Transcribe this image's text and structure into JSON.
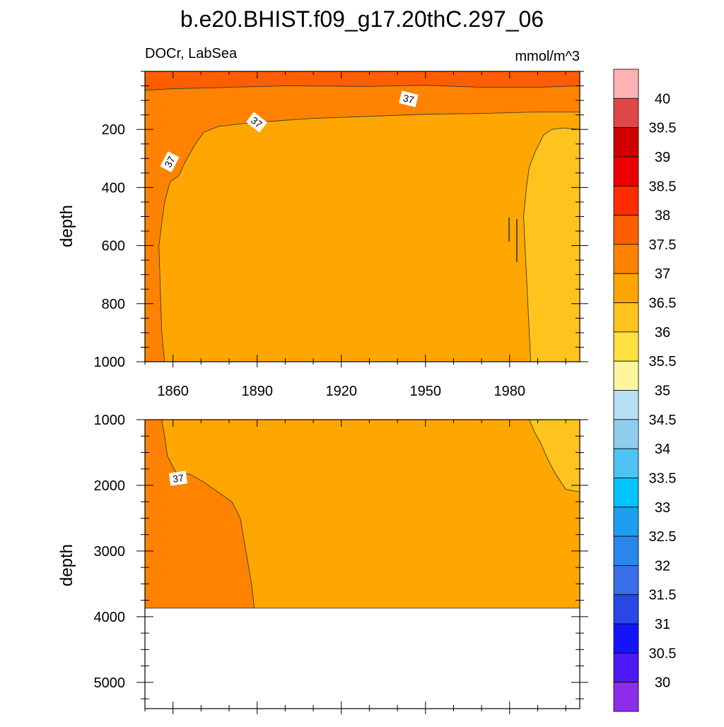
{
  "title": "b.e20.BHIST.f09_g17.20thC.297_06",
  "left_string": "DOCr, LabSea",
  "right_string": "mmol/m^3",
  "colorbar": {
    "colors": [
      "#8b2de8",
      "#4d19f5",
      "#1414fa",
      "#2a46e6",
      "#3a6ee8",
      "#2a86ea",
      "#1e9ef0",
      "#00c4fa",
      "#4ec2f2",
      "#90ccec",
      "#b8def2",
      "#fff59c",
      "#ffe040",
      "#ffc31e",
      "#ffa700",
      "#ff8300",
      "#ff5e00",
      "#ff2c00",
      "#ee0000",
      "#d00000",
      "#e04848",
      "#ffb3b3"
    ],
    "labels": [
      "30",
      "30.5",
      "31",
      "31.5",
      "32",
      "32.5",
      "33",
      "33.5",
      "34",
      "34.5",
      "35",
      "35.5",
      "36",
      "36.5",
      "37",
      "37.5",
      "38",
      "38.5",
      "39",
      "39.5",
      "40"
    ]
  },
  "chart_data": [
    {
      "type": "heatmap",
      "panel": "upper",
      "variable": "DOCr",
      "region": "LabSea",
      "units": "mmol/m^3",
      "ylabel": "depth",
      "xlim": [
        1850,
        2005
      ],
      "ylim": [
        1000,
        0
      ],
      "x_ticks": [
        1860,
        1890,
        1920,
        1950,
        1980
      ],
      "y_ticks": [
        200,
        400,
        600,
        800,
        1000
      ],
      "contour_labels": [
        "37",
        "37",
        "37"
      ],
      "regions": [
        {
          "range": "37.5-38",
          "color": "#ff5e00",
          "polygon": [
            [
              1850,
              0
            ],
            [
              2005,
              0
            ],
            [
              2005,
              50
            ],
            [
              1990,
              55
            ],
            [
              1970,
              55
            ],
            [
              1950,
              48
            ],
            [
              1930,
              52
            ],
            [
              1900,
              50
            ],
            [
              1880,
              55
            ],
            [
              1860,
              60
            ],
            [
              1850,
              65
            ]
          ]
        },
        {
          "range": "37-37.5",
          "color": "#ff8300",
          "polygon": [
            [
              1850,
              65
            ],
            [
              1860,
              60
            ],
            [
              1880,
              55
            ],
            [
              1900,
              50
            ],
            [
              1930,
              52
            ],
            [
              1950,
              48
            ],
            [
              1970,
              55
            ],
            [
              1990,
              55
            ],
            [
              2005,
              50
            ],
            [
              2005,
              140
            ],
            [
              1990,
              140
            ],
            [
              1970,
              145
            ],
            [
              1950,
              148
            ],
            [
              1930,
              155
            ],
            [
              1910,
              162
            ],
            [
              1895,
              172
            ],
            [
              1885,
              180
            ],
            [
              1876,
              190
            ],
            [
              1871,
              210
            ],
            [
              1868,
              250
            ],
            [
              1865,
              300
            ],
            [
              1862,
              360
            ],
            [
              1859,
              380
            ],
            [
              1857,
              450
            ],
            [
              1855,
              600
            ],
            [
              1856,
              900
            ],
            [
              1857,
              1000
            ],
            [
              1850,
              1000
            ]
          ]
        },
        {
          "range": "36.5-37",
          "color": "#ffa700",
          "polygon": [
            [
              1857,
              1000
            ],
            [
              1856,
              900
            ],
            [
              1855,
              600
            ],
            [
              1857,
              450
            ],
            [
              1859,
              380
            ],
            [
              1862,
              360
            ],
            [
              1865,
              300
            ],
            [
              1868,
              250
            ],
            [
              1871,
              210
            ],
            [
              1876,
              190
            ],
            [
              1885,
              180
            ],
            [
              1895,
              172
            ],
            [
              1910,
              162
            ],
            [
              1930,
              155
            ],
            [
              1950,
              148
            ],
            [
              1970,
              145
            ],
            [
              1990,
              140
            ],
            [
              2005,
              140
            ],
            [
              2005,
              200
            ],
            [
              1999,
              195
            ],
            [
              1995,
              200
            ],
            [
              1992,
              220
            ],
            [
              1989,
              280
            ],
            [
              1987,
              330
            ],
            [
              1986,
              400
            ],
            [
              1985,
              500
            ],
            [
              1986,
              700
            ],
            [
              1987,
              900
            ],
            [
              1987.5,
              1000
            ]
          ]
        },
        {
          "range": "36-36.5",
          "color": "#ffc31e",
          "polygon": [
            [
              1987.5,
              1000
            ],
            [
              1987,
              900
            ],
            [
              1986,
              700
            ],
            [
              1985,
              500
            ],
            [
              1986,
              400
            ],
            [
              1987,
              330
            ],
            [
              1989,
              280
            ],
            [
              1992,
              220
            ],
            [
              1995,
              200
            ],
            [
              1999,
              195
            ],
            [
              2005,
              200
            ],
            [
              2005,
              1000
            ]
          ]
        }
      ]
    },
    {
      "type": "heatmap",
      "panel": "lower",
      "variable": "DOCr",
      "region": "LabSea",
      "units": "mmol/m^3",
      "ylabel": "depth",
      "xlim": [
        1850,
        2005
      ],
      "ylim": [
        5400,
        1000
      ],
      "y_ticks": [
        1000,
        2000,
        3000,
        4000,
        5000
      ],
      "contour_labels": [
        "37"
      ],
      "bottom_depth": 3870,
      "regions": [
        {
          "range": "37-37.5",
          "color": "#ff8300",
          "polygon": [
            [
              1850,
              1000
            ],
            [
              1856,
              1000
            ],
            [
              1857,
              1250
            ],
            [
              1858,
              1550
            ],
            [
              1861,
              1800
            ],
            [
              1866,
              1830
            ],
            [
              1871,
              1950
            ],
            [
              1876,
              2100
            ],
            [
              1881,
              2250
            ],
            [
              1884,
              2500
            ],
            [
              1886,
              3000
            ],
            [
              1888,
              3500
            ],
            [
              1889,
              3870
            ],
            [
              1850,
              3870
            ]
          ]
        },
        {
          "range": "36.5-37",
          "color": "#ffa700",
          "polygon": [
            [
              1856,
              1000
            ],
            [
              1987,
              1000
            ],
            [
              1989,
              1200
            ],
            [
              1991,
              1350
            ],
            [
              1993,
              1550
            ],
            [
              1996,
              1800
            ],
            [
              2000,
              2060
            ],
            [
              2005,
              2100
            ],
            [
              2005,
              3870
            ],
            [
              1889,
              3870
            ],
            [
              1888,
              3500
            ],
            [
              1886,
              3000
            ],
            [
              1884,
              2500
            ],
            [
              1881,
              2250
            ],
            [
              1876,
              2100
            ],
            [
              1871,
              1950
            ],
            [
              1866,
              1830
            ],
            [
              1861,
              1800
            ],
            [
              1858,
              1550
            ],
            [
              1857,
              1250
            ]
          ]
        },
        {
          "range": "36-36.5",
          "color": "#ffc31e",
          "polygon": [
            [
              1987,
              1000
            ],
            [
              2005,
              1000
            ],
            [
              2005,
              2100
            ],
            [
              2000,
              2060
            ],
            [
              1996,
              1800
            ],
            [
              1993,
              1550
            ],
            [
              1991,
              1350
            ],
            [
              1989,
              1200
            ]
          ]
        }
      ]
    }
  ]
}
